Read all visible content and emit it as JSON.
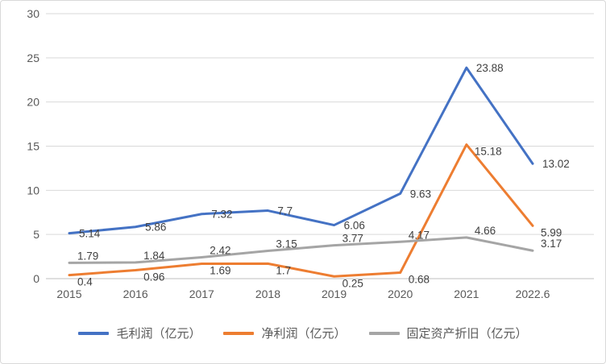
{
  "chart_data": {
    "type": "line",
    "title": "",
    "xlabel": "",
    "ylabel": "",
    "categories": [
      "2015",
      "2016",
      "2017",
      "2018",
      "2019",
      "2020",
      "2021",
      "2022.6"
    ],
    "series": [
      {
        "name": "毛利润（亿元）",
        "color": "#4472C4",
        "values": [
          5.14,
          5.86,
          7.32,
          7.7,
          6.06,
          9.63,
          23.88,
          13.02
        ]
      },
      {
        "name": "净利润（亿元）",
        "color": "#ED7D31",
        "values": [
          0.4,
          0.96,
          1.69,
          1.7,
          0.25,
          0.68,
          15.18,
          5.99
        ]
      },
      {
        "name": "固定资产折旧（亿元）",
        "color": "#A5A5A5",
        "values": [
          1.79,
          1.84,
          2.42,
          3.15,
          3.77,
          4.17,
          4.66,
          3.17
        ]
      }
    ],
    "ylim": [
      0,
      30
    ],
    "yticks": [
      0,
      5,
      10,
      15,
      20,
      25,
      30
    ],
    "grid": true,
    "data_labels": true,
    "legend_position": "bottom",
    "grid_color": "#D9D9D9",
    "axis_line_color": "#BFBFBF",
    "axis_text_color": "#595959",
    "data_label_color": "#404040",
    "background_color": "#FFFFFF",
    "border_color": "#D9D9D9"
  }
}
